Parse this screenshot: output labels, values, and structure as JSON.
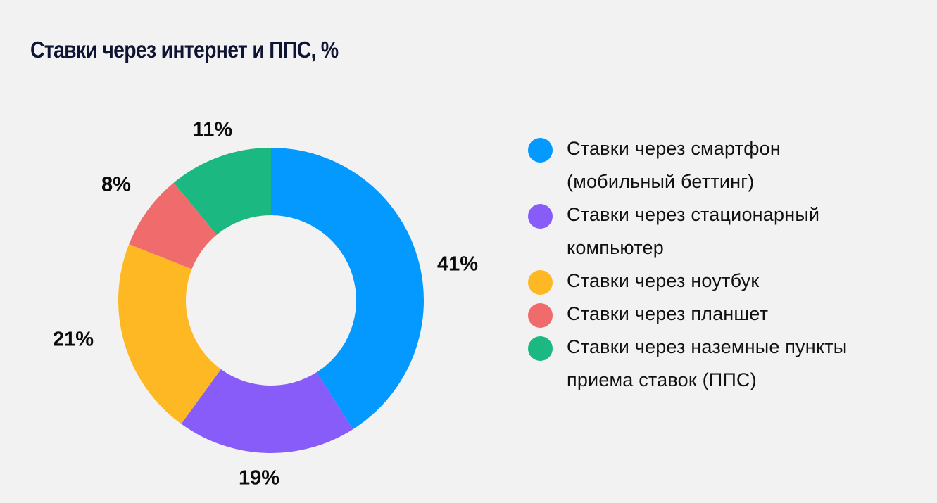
{
  "title": "Ставки через интернет и ППС, %",
  "chart_data": {
    "type": "pie",
    "subtype": "donut",
    "title": "Ставки через интернет и ППС, %",
    "categories": [
      "Ставки через смартфон (мобильный беттинг)",
      "Ставки через стационарный компьютер",
      "Ставки через ноутбук",
      "Ставки через планшет",
      "Ставки через наземные пункты приема ставок (ППС)"
    ],
    "values": [
      41,
      19,
      21,
      8,
      11
    ],
    "labels": [
      "41%",
      "19%",
      "21%",
      "8%",
      "11%"
    ],
    "colors": [
      "#0399fe",
      "#875cf8",
      "#fdb823",
      "#f06c6c",
      "#1bb981"
    ],
    "legend_position": "right",
    "start_angle": "12 o'clock, clockwise"
  },
  "legend": [
    {
      "lines": [
        "Ставки через смартфон",
        "(мобильный беттинг)"
      ],
      "color": "#0399fe"
    },
    {
      "lines": [
        "Ставки через стационарный",
        "компьютер"
      ],
      "color": "#875cf8"
    },
    {
      "lines": [
        "Ставки через ноутбук"
      ],
      "color": "#fdb823"
    },
    {
      "lines": [
        "Ставки через планшет"
      ],
      "color": "#f06c6c"
    },
    {
      "lines": [
        "Ставки через наземные пункты",
        "приема ставок (ППС)"
      ],
      "color": "#1bb981"
    }
  ]
}
